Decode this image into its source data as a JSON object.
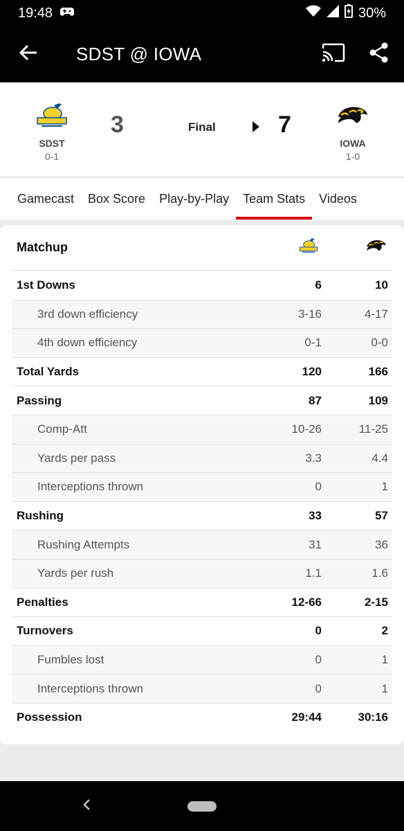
{
  "status_bar": {
    "time": "19:48",
    "battery": "30%"
  },
  "app_bar": {
    "title": "SDST @ IOWA"
  },
  "scoreboard": {
    "away": {
      "abbr": "SDST",
      "record": "0-1",
      "score": "3",
      "logo": "jackrabbits-logo"
    },
    "home": {
      "abbr": "IOWA",
      "record": "1-0",
      "score": "7",
      "logo": "hawkeye-logo"
    },
    "status": "Final"
  },
  "tabs": [
    {
      "label": "Gamecast"
    },
    {
      "label": "Box Score"
    },
    {
      "label": "Play-by-Play"
    },
    {
      "label": "Team Stats"
    },
    {
      "label": "Videos"
    }
  ],
  "active_tab": "Team Stats",
  "matchup": {
    "title": "Matchup",
    "rows": [
      {
        "label": "1st Downs",
        "away": "6",
        "home": "10",
        "type": "main"
      },
      {
        "label": "3rd down efficiency",
        "away": "3-16",
        "home": "4-17",
        "type": "sub"
      },
      {
        "label": "4th down efficiency",
        "away": "0-1",
        "home": "0-0",
        "type": "sub"
      },
      {
        "label": "Total Yards",
        "away": "120",
        "home": "166",
        "type": "main"
      },
      {
        "label": "Passing",
        "away": "87",
        "home": "109",
        "type": "main"
      },
      {
        "label": "Comp-Att",
        "away": "10-26",
        "home": "11-25",
        "type": "sub"
      },
      {
        "label": "Yards per pass",
        "away": "3.3",
        "home": "4.4",
        "type": "sub"
      },
      {
        "label": "Interceptions thrown",
        "away": "0",
        "home": "1",
        "type": "sub"
      },
      {
        "label": "Rushing",
        "away": "33",
        "home": "57",
        "type": "main"
      },
      {
        "label": "Rushing Attempts",
        "away": "31",
        "home": "36",
        "type": "sub"
      },
      {
        "label": "Yards per rush",
        "away": "1.1",
        "home": "1.6",
        "type": "sub"
      },
      {
        "label": "Penalties",
        "away": "12-66",
        "home": "2-15",
        "type": "main"
      },
      {
        "label": "Turnovers",
        "away": "0",
        "home": "2",
        "type": "main"
      },
      {
        "label": "Fumbles lost",
        "away": "0",
        "home": "1",
        "type": "sub"
      },
      {
        "label": "Interceptions thrown",
        "away": "0",
        "home": "1",
        "type": "sub"
      },
      {
        "label": "Possession",
        "away": "29:44",
        "home": "30:16",
        "type": "main"
      }
    ]
  },
  "colors": {
    "accent": "#d8000c",
    "bar": "#000000",
    "iowa_gold": "#f5c400",
    "sdst_yellow": "#f6d02f",
    "sdst_blue": "#0b4c8c"
  }
}
